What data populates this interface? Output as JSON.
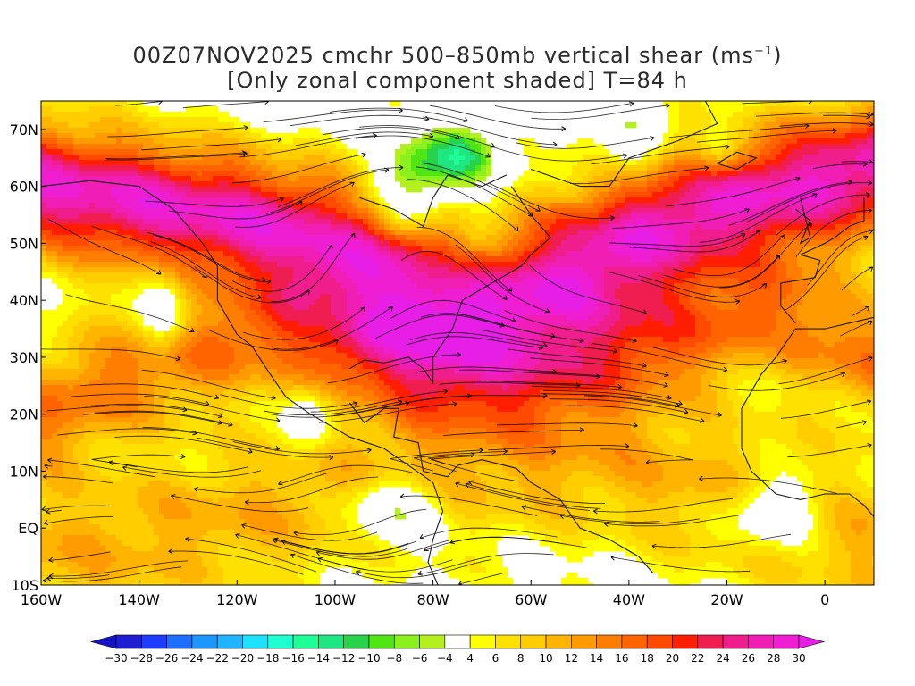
{
  "title": {
    "line1_prefix": "00Z07NOV2025 cmchr 500–850mb vertical shear (ms",
    "line1_sup": "−1",
    "line1_suffix": ")",
    "line2": "[Only zonal component shaded] T=84 h"
  },
  "map": {
    "lon_range": [
      -160,
      10
    ],
    "lat_range": [
      -10,
      75
    ],
    "lat_ticks": [
      {
        "value": 70,
        "label": "70N"
      },
      {
        "value": 60,
        "label": "60N"
      },
      {
        "value": 50,
        "label": "50N"
      },
      {
        "value": 40,
        "label": "40N"
      },
      {
        "value": 30,
        "label": "30N"
      },
      {
        "value": 20,
        "label": "20N"
      },
      {
        "value": 10,
        "label": "10N"
      },
      {
        "value": 0,
        "label": "EQ"
      },
      {
        "value": -10,
        "label": "10S"
      }
    ],
    "lon_ticks": [
      {
        "value": -160,
        "label": "160W"
      },
      {
        "value": -140,
        "label": "140W"
      },
      {
        "value": -120,
        "label": "120W"
      },
      {
        "value": -100,
        "label": "100W"
      },
      {
        "value": -80,
        "label": "80W"
      },
      {
        "value": -60,
        "label": "60W"
      },
      {
        "value": -40,
        "label": "40W"
      },
      {
        "value": -20,
        "label": "20W"
      },
      {
        "value": 0,
        "label": "0"
      }
    ]
  },
  "colorbar": {
    "labels": [
      "−30",
      "−28",
      "−26",
      "−24",
      "−22",
      "−20",
      "−18",
      "−16",
      "−14",
      "−12",
      "−10",
      "−8",
      "−6",
      "−4",
      "4",
      "6",
      "8",
      "10",
      "12",
      "14",
      "16",
      "18",
      "20",
      "22",
      "24",
      "26",
      "28",
      "30"
    ],
    "colors": [
      "#1e1ed2",
      "#1e3cff",
      "#1e6eff",
      "#1e96ff",
      "#1eb4ff",
      "#1ee1ff",
      "#1effd2",
      "#1eff96",
      "#1ee682",
      "#28d24b",
      "#50e614",
      "#8cf01e",
      "#b4f01e",
      "#ffffff",
      "#ffff00",
      "#ffe100",
      "#ffcd00",
      "#ffb400",
      "#ff9b00",
      "#ff7d00",
      "#ff6400",
      "#ff4b00",
      "#ff1e00",
      "#f01e50",
      "#f01e8c",
      "#f01eb4",
      "#f01ed2"
    ],
    "left_arrow_color": "#1414c8",
    "right_arrow_color": "#e61ee6"
  }
}
